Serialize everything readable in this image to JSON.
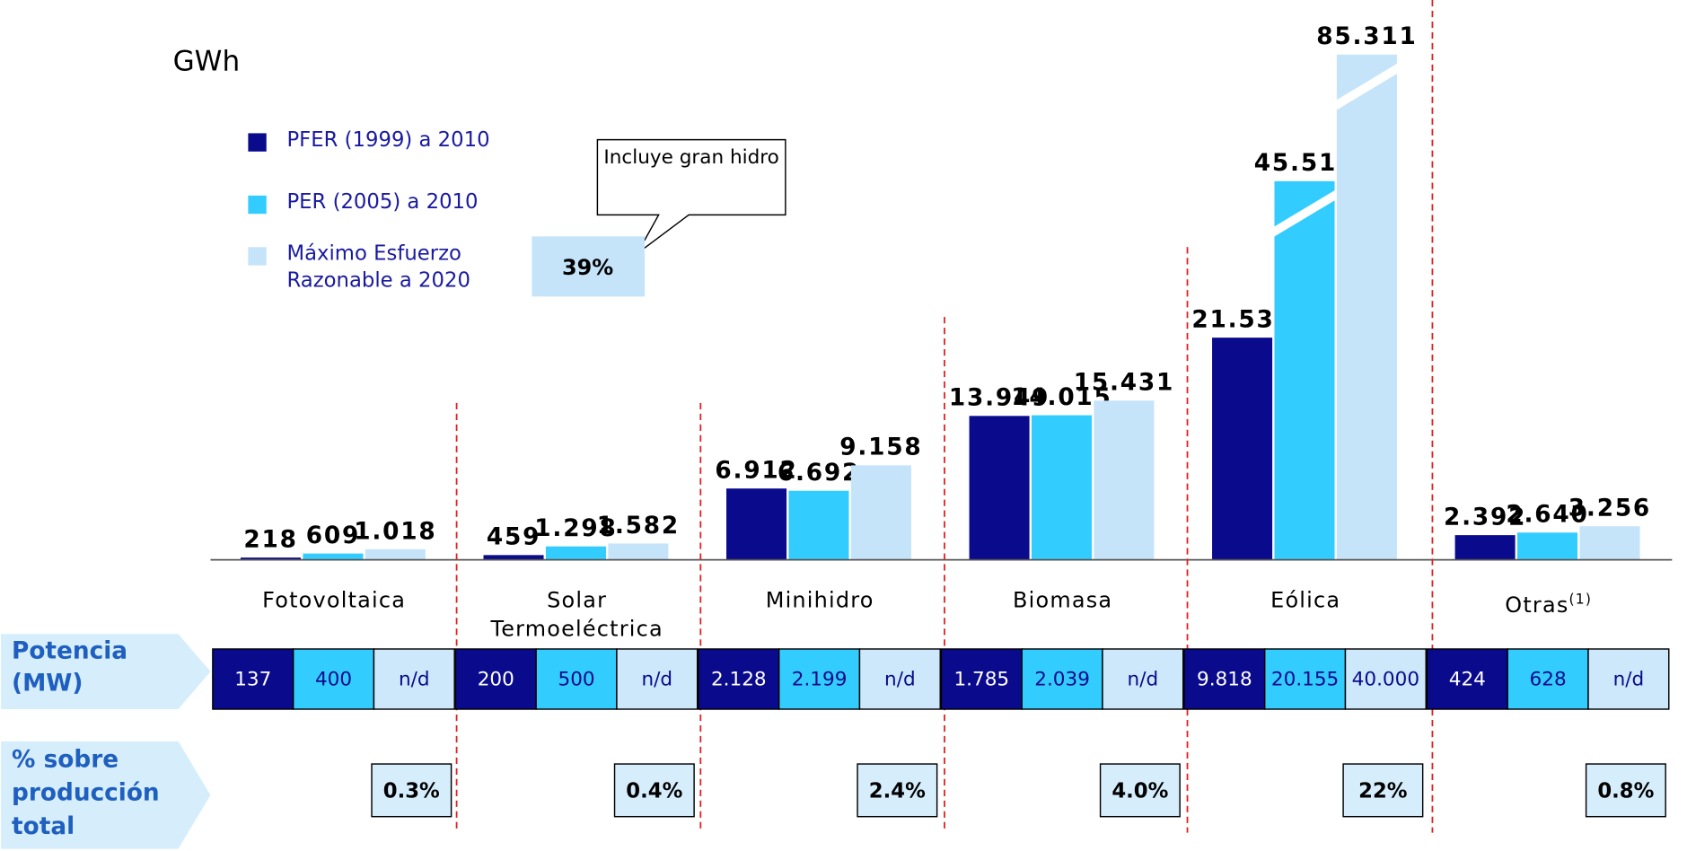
{
  "chart_data": {
    "type": "bar",
    "unit_label": "GWh",
    "axis_break": true,
    "categories": [
      "Fotovoltaica",
      "Solar Termoeléctrica",
      "Minihidro",
      "Biomasa",
      "Eólica",
      "Otras"
    ],
    "category_notes": [
      null,
      null,
      null,
      null,
      null,
      "(1)"
    ],
    "series": [
      {
        "name": "PFER (1999) a 2010",
        "color": "#0a0a8c",
        "values": [
          218,
          459,
          6912,
          13949,
          21538,
          2392
        ],
        "value_labels": [
          "218",
          "459",
          "6.912",
          "13.949",
          "21.538",
          "2.392"
        ]
      },
      {
        "name": "PER (2005) a 2010",
        "color": "#33ccff",
        "values": [
          609,
          1298,
          6692,
          14015,
          45511,
          2640
        ],
        "value_labels": [
          "609",
          "1.298",
          "6.692",
          "14.015",
          "45.511",
          "2.640"
        ]
      },
      {
        "name": "Máximo Esfuerzo Razonable a 2020",
        "color": "#c5e4fa",
        "values": [
          1018,
          1582,
          9158,
          15431,
          85311,
          3256
        ],
        "value_labels": [
          "1.018",
          "1.582",
          "9.158",
          "15.431",
          "85.311",
          "3.256"
        ]
      }
    ],
    "legend_extra": {
      "value": 39,
      "label": "39%"
    },
    "callout": "Incluye gran hidro",
    "power": {
      "label": "Potencia (MW)",
      "rows": [
        [
          "137",
          "400",
          "n/d"
        ],
        [
          "200",
          "500",
          "n/d"
        ],
        [
          "2.128",
          "2.199",
          "n/d"
        ],
        [
          "1.785",
          "2.039",
          "n/d"
        ],
        [
          "9.818",
          "20.155",
          "40.000"
        ],
        [
          "424",
          "628",
          "n/d"
        ]
      ]
    },
    "share": {
      "label": "% sobre producción total",
      "values": [
        0.3,
        0.4,
        2.4,
        4.0,
        22,
        0.8
      ],
      "value_labels": [
        "0.3%",
        "0.4%",
        "2.4%",
        "4.0%",
        "22%",
        "0.8%"
      ]
    }
  }
}
